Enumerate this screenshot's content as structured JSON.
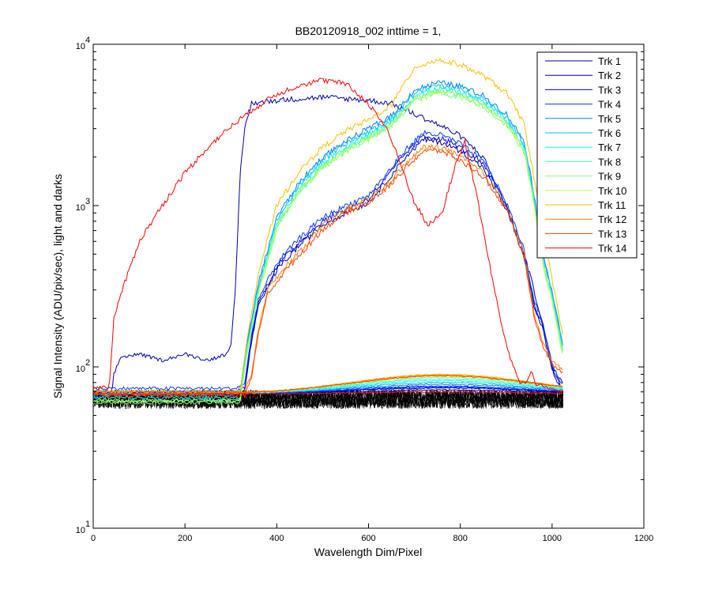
{
  "chart_data": {
    "type": "line",
    "title": "BB20120918_002 inttime = 1,",
    "xlabel": "Wavelength Dim/Pixel",
    "ylabel": "Signal Intensity (ADU/pix/sec), light and darks",
    "xlim": [
      0,
      1200
    ],
    "ylim": [
      10,
      10000
    ],
    "yscale": "log",
    "x_ticks": [
      0,
      200,
      400,
      600,
      800,
      1000,
      1200
    ],
    "y_ticks": [
      10,
      100,
      1000,
      10000
    ],
    "y_tick_base": "10",
    "y_tick_exponents": [
      "1",
      "2",
      "3",
      "4"
    ],
    "grid": false,
    "legend_position": "top-right",
    "series": [
      {
        "name": "Trk 1",
        "color": "#00008f",
        "shape": "blue_low",
        "scale": 0.95,
        "bump": 72
      },
      {
        "name": "Trk 2",
        "color": "#0000af",
        "shape": "dark_high",
        "scale": 1.0,
        "bump": 74
      },
      {
        "name": "Trk 3",
        "color": "#0000ff",
        "shape": "blue_low",
        "scale": 1.0,
        "bump": 75
      },
      {
        "name": "Trk 4",
        "color": "#0040ff",
        "shape": "blue_low",
        "scale": 1.05,
        "bump": 76
      },
      {
        "name": "Trk 5",
        "color": "#0080ff",
        "shape": "cyan_high",
        "scale": 1.0,
        "bump": 78
      },
      {
        "name": "Trk 6",
        "color": "#00bfff",
        "shape": "cyan_high",
        "scale": 0.96,
        "bump": 80
      },
      {
        "name": "Trk 7",
        "color": "#00ffff",
        "shape": "cyan_high",
        "scale": 0.92,
        "bump": 82
      },
      {
        "name": "Trk 8",
        "color": "#40ffbf",
        "shape": "cyan_high",
        "scale": 0.89,
        "bump": 84
      },
      {
        "name": "Trk 9",
        "color": "#80ff80",
        "shape": "cyan_high",
        "scale": 0.86,
        "bump": 86
      },
      {
        "name": "Trk 10",
        "color": "#bfff40",
        "shape": "cyan_high",
        "scale": 0.88,
        "bump": 88
      },
      {
        "name": "Trk 11",
        "color": "#ffbf00",
        "shape": "orange_top",
        "scale": 1.0,
        "bump": 90
      },
      {
        "name": "Trk 12",
        "color": "#ff8000",
        "shape": "red_low",
        "scale": 1.0,
        "bump": 89
      },
      {
        "name": "Trk 13",
        "color": "#ff4000",
        "shape": "red_low",
        "scale": 0.95,
        "bump": 88
      },
      {
        "name": "Trk 14",
        "color": "#ff0000",
        "shape": "red_broad",
        "scale": 1.0,
        "bump": 70
      }
    ],
    "dark_series_color": "#000000",
    "dark_level_range": [
      55,
      72
    ]
  }
}
